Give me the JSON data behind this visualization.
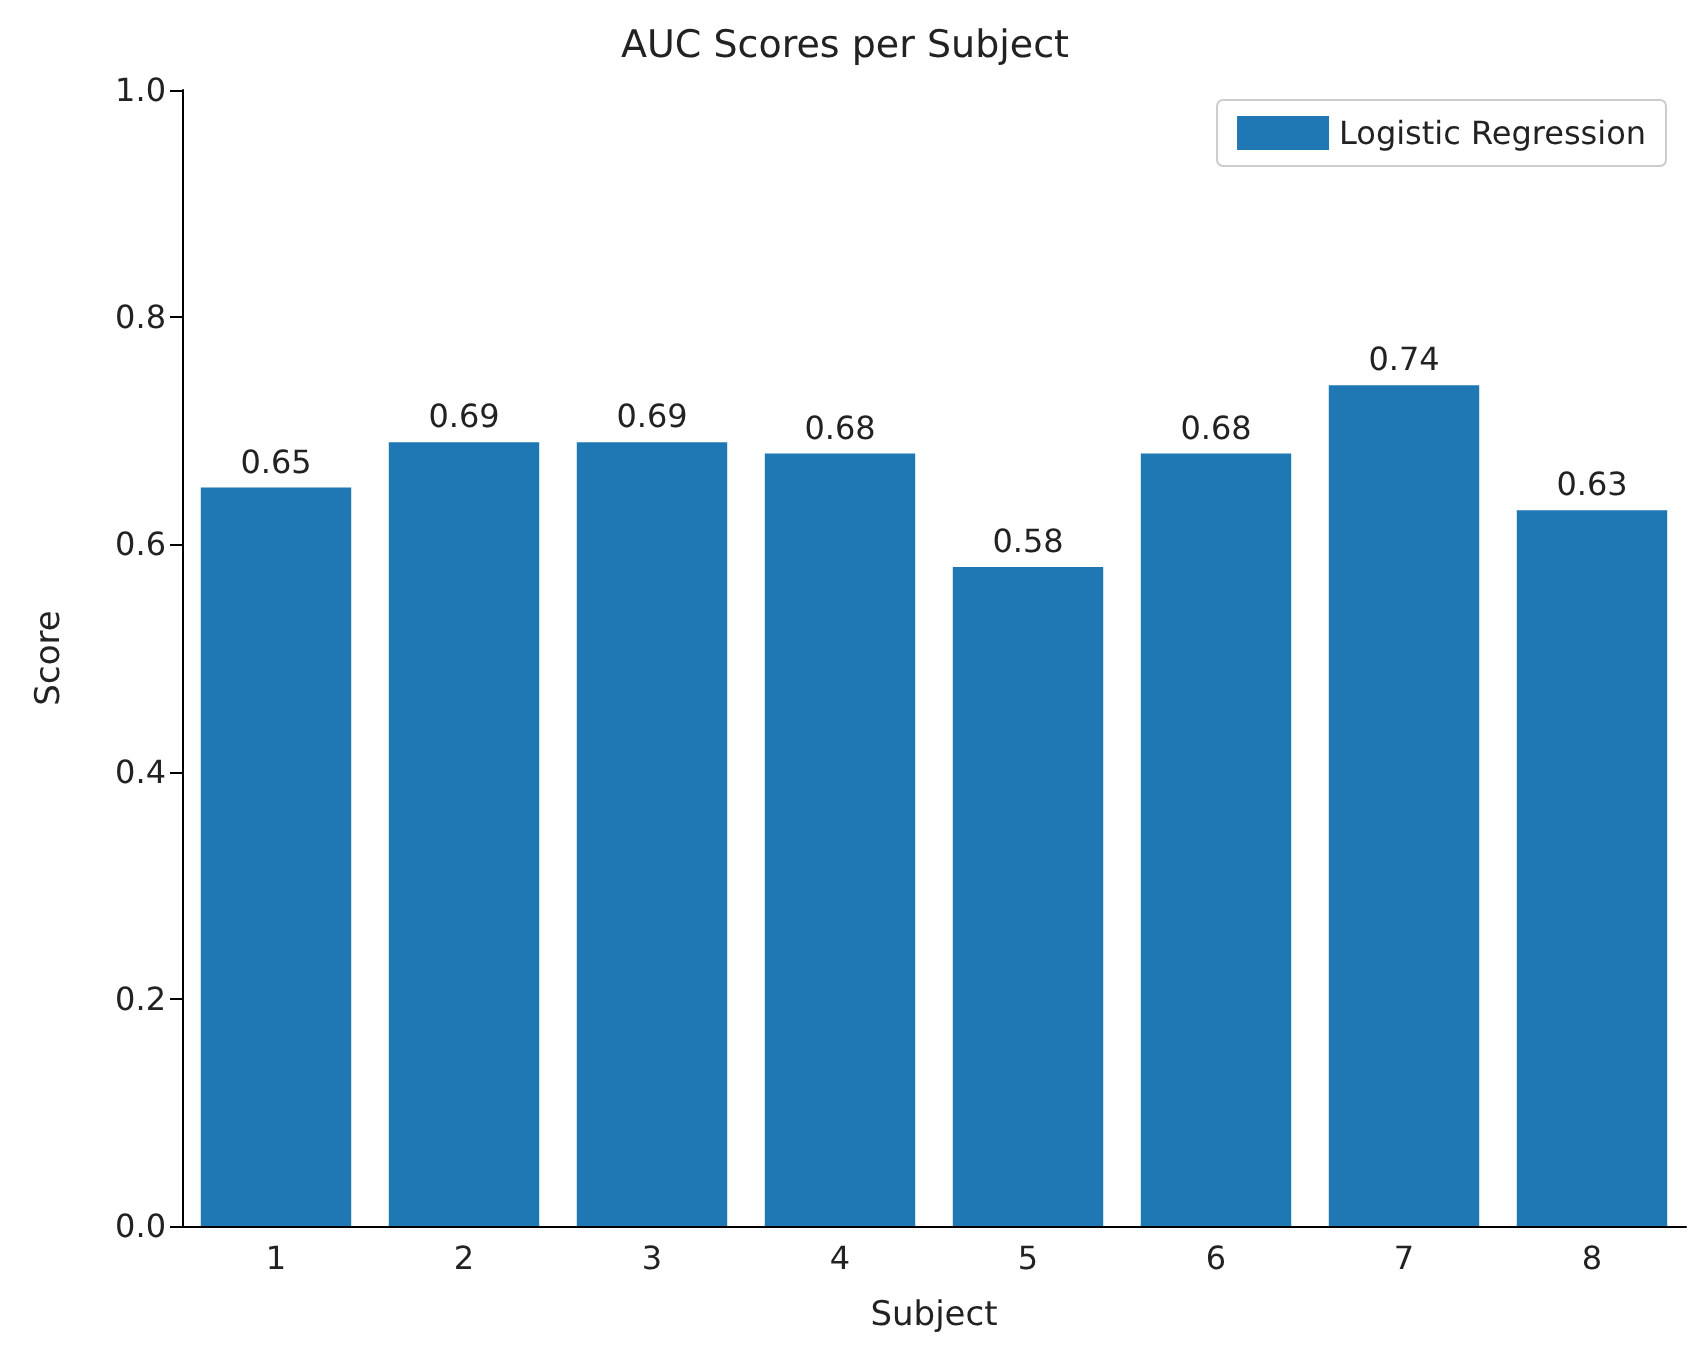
{
  "chart_data": {
    "type": "bar",
    "title": "AUC Scores per Subject",
    "xlabel": "Subject",
    "ylabel": "Score",
    "categories": [
      "1",
      "2",
      "3",
      "4",
      "5",
      "6",
      "7",
      "8"
    ],
    "series": [
      {
        "name": "Logistic Regression",
        "color": "#1f77b4",
        "values": [
          0.65,
          0.69,
          0.69,
          0.68,
          0.58,
          0.68,
          0.74,
          0.63
        ]
      }
    ],
    "ylim": [
      0,
      1
    ],
    "yticks": [
      {
        "value": 0,
        "label": "0.0"
      },
      0.2,
      0.4,
      0.6,
      0.8,
      {
        "value": 1,
        "label": "1.0"
      }
    ],
    "data_labels": true,
    "legend": "top right",
    "grid": false
  }
}
